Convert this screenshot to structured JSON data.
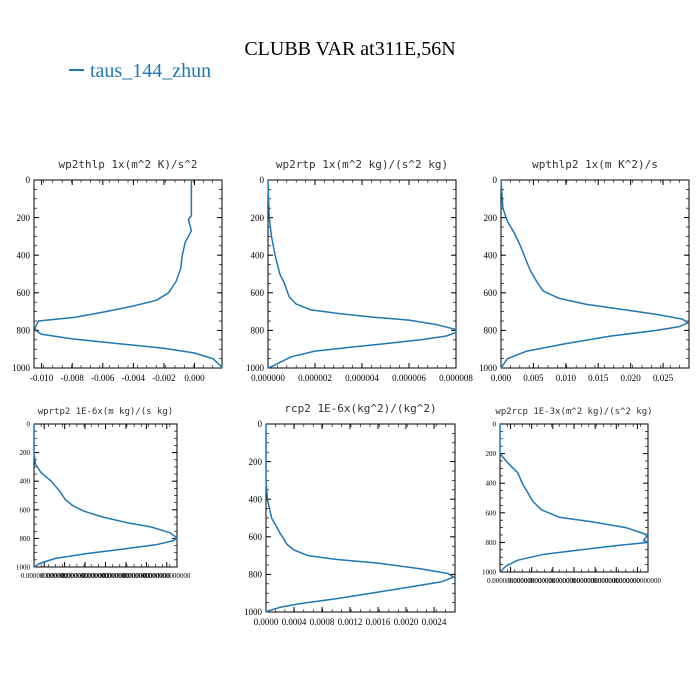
{
  "figure": {
    "title": "CLUBB VAR at311E,56N",
    "legend": [
      {
        "label": "taus_144_zhun",
        "color": "#1f77b4"
      }
    ],
    "line_color": "#1f77b4"
  },
  "chart_data": [
    {
      "type": "line",
      "title": "wp2thlp   1x(m^2 K)/s^2",
      "xlim": [
        -0.0105,
        0.0018
      ],
      "ylim": [
        1000,
        0
      ],
      "xticks": [
        -0.01,
        -0.008,
        -0.006,
        -0.004,
        -0.002,
        0.0
      ],
      "xtick_labels": [
        "-0.010",
        "-0.008",
        "-0.006",
        "-0.004",
        "-0.002",
        "0.000"
      ],
      "yticks": [
        0,
        200,
        400,
        600,
        800,
        1000
      ],
      "ytick_labels": [
        "0",
        "200",
        "400",
        "600",
        "800",
        "1000"
      ],
      "series": [
        {
          "name": "taus_144_zhun",
          "x": [
            -0.0002,
            -0.0002,
            -0.0004,
            -0.0002,
            -0.0006,
            -0.0008,
            -0.0009,
            -0.0012,
            -0.0017,
            -0.0025,
            -0.004,
            -0.0058,
            -0.0078,
            -0.0102,
            -0.0104,
            -0.0104,
            -0.01,
            -0.008,
            -0.005,
            -0.002,
            0.0,
            0.0012,
            0.0016,
            0.0018,
            0.0018
          ],
          "y": [
            0,
            190,
            210,
            270,
            330,
            400,
            470,
            540,
            600,
            640,
            670,
            700,
            730,
            750,
            780,
            800,
            820,
            845,
            870,
            895,
            920,
            950,
            980,
            995,
            1000
          ]
        }
      ]
    },
    {
      "type": "line",
      "title": "wp2rtp   1x(m^2 kg)/(s^2 kg)",
      "xlim": [
        0.0,
        8e-06
      ],
      "ylim": [
        1000,
        0
      ],
      "xticks": [
        0.0,
        2e-06,
        4e-06,
        6e-06,
        8e-06
      ],
      "xtick_labels": [
        "0.000000",
        "0.000002",
        "0.000004",
        "0.000006",
        "0.000008"
      ],
      "yticks": [
        0,
        200,
        400,
        600,
        800,
        1000
      ],
      "ytick_labels": [
        "0",
        "200",
        "400",
        "600",
        "800",
        "1000"
      ],
      "series": [
        {
          "name": "taus_144_zhun",
          "x": [
            0.0,
            5e-08,
            1.5e-07,
            3e-07,
            5e-07,
            7e-07,
            9e-07,
            1.2e-06,
            1.8e-06,
            3e-06,
            4.5e-06,
            6e-06,
            7.2e-06,
            8e-06,
            8e-06,
            7.6e-06,
            6.5e-06,
            5e-06,
            3.5e-06,
            2e-06,
            1e-06,
            5e-07,
            2e-07,
            0.0
          ],
          "y": [
            0,
            200,
            300,
            400,
            500,
            550,
            620,
            660,
            690,
            710,
            730,
            745,
            770,
            795,
            810,
            830,
            850,
            870,
            890,
            910,
            940,
            970,
            990,
            1000
          ]
        }
      ]
    },
    {
      "type": "line",
      "title": "wpthlp2   1x(m K^2)/s",
      "xlim": [
        0.0,
        0.029
      ],
      "ylim": [
        1000,
        0
      ],
      "xticks": [
        0.0,
        0.005,
        0.01,
        0.015,
        0.02,
        0.025
      ],
      "xtick_labels": [
        "0.000",
        "0.005",
        "0.010",
        "0.015",
        "0.020",
        "0.025"
      ],
      "yticks": [
        0,
        200,
        400,
        600,
        800,
        1000
      ],
      "ytick_labels": [
        "0",
        "200",
        "400",
        "600",
        "800",
        "1000"
      ],
      "series": [
        {
          "name": "taus_144_zhun",
          "x": [
            0.0,
            0.0003,
            0.001,
            0.002,
            0.003,
            0.0038,
            0.0045,
            0.0055,
            0.0065,
            0.009,
            0.013,
            0.019,
            0.024,
            0.028,
            0.0288,
            0.0275,
            0.024,
            0.017,
            0.01,
            0.004,
            0.001,
            0.0
          ],
          "y": [
            0,
            150,
            220,
            280,
            350,
            420,
            480,
            540,
            590,
            630,
            660,
            690,
            715,
            740,
            760,
            780,
            800,
            830,
            870,
            910,
            950,
            1000
          ]
        }
      ]
    },
    {
      "type": "line",
      "title": "wprtp2   1E-6x(m kg)/(s kg)",
      "xlim": [
        0.0,
        1.0
      ],
      "ylim": [
        1000,
        0
      ],
      "xtick_labels": [
        "0.000000000000",
        "0.000000000000",
        "0.000000000000",
        "0.000000000000",
        "0.000000000000",
        "0.000000000000",
        "0.000000000000"
      ],
      "yticks": [
        0,
        200,
        400,
        600,
        800,
        1000
      ],
      "ytick_labels": [
        "0",
        "200",
        "400",
        "600",
        "800",
        "1000"
      ],
      "series": [
        {
          "name": "taus_144_zhun",
          "x": [
            0.0,
            0.0,
            0.01,
            0.05,
            0.12,
            0.18,
            0.22,
            0.27,
            0.35,
            0.48,
            0.65,
            0.82,
            0.95,
            1.0,
            0.98,
            0.85,
            0.62,
            0.38,
            0.15,
            0.04,
            0.0
          ],
          "y": [
            0,
            200,
            280,
            340,
            400,
            470,
            530,
            570,
            610,
            650,
            690,
            720,
            760,
            795,
            815,
            845,
            875,
            905,
            940,
            975,
            1000
          ]
        }
      ]
    },
    {
      "type": "line",
      "title": "rcp2   1E-6x(kg^2)/(kg^2)",
      "xlim": [
        0.0,
        0.0027
      ],
      "ylim": [
        1000,
        0
      ],
      "xticks": [
        0.0,
        0.0004,
        0.0008,
        0.0012,
        0.0016,
        0.002,
        0.0024
      ],
      "xtick_labels": [
        "0.0000",
        "0.0004",
        "0.0008",
        "0.0012",
        "0.0016",
        "0.0020",
        "0.0024"
      ],
      "yticks": [
        0,
        200,
        400,
        600,
        800,
        1000
      ],
      "ytick_labels": [
        "0",
        "200",
        "400",
        "600",
        "800",
        "1000"
      ],
      "series": [
        {
          "name": "taus_144_zhun",
          "x": [
            0.0,
            0.0,
            2e-05,
            8e-05,
            0.0002,
            0.0003,
            0.0004,
            0.0006,
            0.001,
            0.0016,
            0.0022,
            0.0026,
            0.00268,
            0.0025,
            0.002,
            0.0015,
            0.001,
            0.0005,
            0.0002,
            5e-05,
            0.0
          ],
          "y": [
            0,
            300,
            400,
            500,
            580,
            640,
            670,
            700,
            720,
            740,
            770,
            795,
            815,
            840,
            870,
            900,
            930,
            955,
            975,
            992,
            1000
          ]
        }
      ]
    },
    {
      "type": "line",
      "title": "wp2rcp   1E-3x(m^2 kg)/(s^2 kg)",
      "xlim": [
        0.0,
        1.0
      ],
      "ylim": [
        1000,
        0
      ],
      "xtick_labels": [
        "0.000000000000",
        "0.000000000000",
        "0.000000000000",
        "0.000000000000",
        "0.000000000000",
        "0.000000000000",
        "0.000000000000"
      ],
      "yticks": [
        0,
        200,
        400,
        600,
        800,
        1000
      ],
      "ytick_labels": [
        "0",
        "200",
        "400",
        "600",
        "800",
        "1000"
      ],
      "series": [
        {
          "name": "taus_144_zhun",
          "x": [
            0.0,
            0.0,
            0.05,
            0.12,
            0.15,
            0.18,
            0.22,
            0.28,
            0.4,
            0.62,
            0.85,
            1.0,
            0.97,
            1.0,
            0.8,
            0.55,
            0.3,
            0.12,
            0.04,
            0.0
          ],
          "y": [
            0,
            200,
            260,
            330,
            400,
            450,
            520,
            580,
            630,
            660,
            700,
            750,
            785,
            800,
            820,
            850,
            880,
            920,
            960,
            1000
          ]
        }
      ]
    }
  ]
}
